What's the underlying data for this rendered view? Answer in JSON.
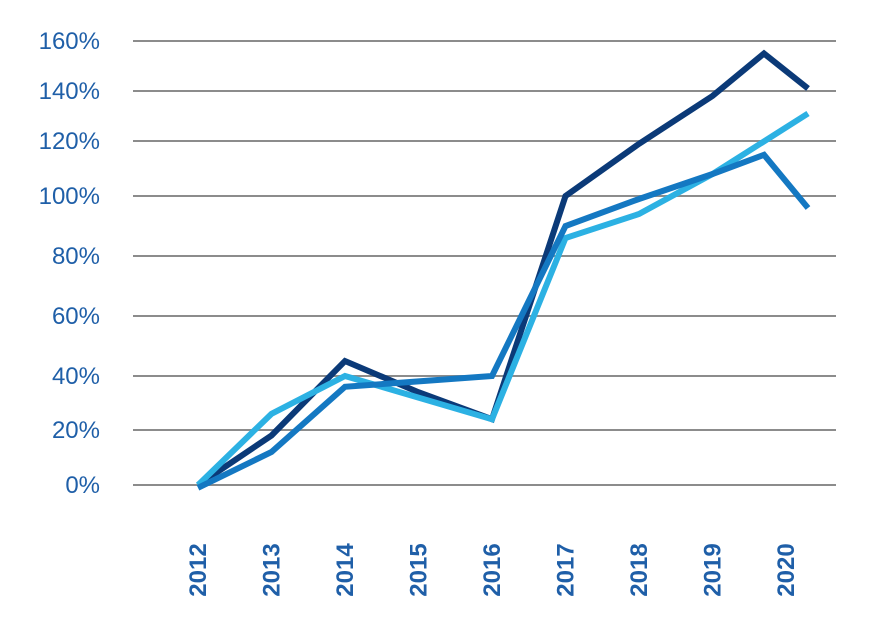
{
  "chart_data": {
    "type": "line",
    "x": [
      "2012",
      "2013",
      "2014",
      "2015",
      "2016",
      "2017",
      "2018",
      "2019",
      "2020"
    ],
    "y_ticks": [
      "0%",
      "20%",
      "40%",
      "60%",
      "80%",
      "100%",
      "120%",
      "140%",
      "160%"
    ],
    "ylim": [
      0,
      160
    ],
    "grid": true,
    "title": "",
    "xlabel": "",
    "ylabel": "",
    "series": [
      {
        "color": "#0b3a78",
        "points": [
          [
            2012,
            0
          ],
          [
            2013,
            18
          ],
          [
            2014,
            45
          ],
          [
            2015,
            34
          ],
          [
            2016,
            24
          ],
          [
            2017,
            100
          ],
          [
            2018,
            119
          ],
          [
            2019,
            138
          ],
          [
            2019.7,
            155
          ],
          [
            2020.3,
            141
          ]
        ]
      },
      {
        "color": "#2cb1e3",
        "points": [
          [
            2012,
            0
          ],
          [
            2013,
            26
          ],
          [
            2014,
            40
          ],
          [
            2015,
            32
          ],
          [
            2016,
            24
          ],
          [
            2017,
            86
          ],
          [
            2018,
            94
          ],
          [
            2019,
            108
          ],
          [
            2020.3,
            131
          ]
        ]
      },
      {
        "color": "#1478c2",
        "points": [
          [
            2012,
            -1
          ],
          [
            2013,
            12
          ],
          [
            2014,
            36
          ],
          [
            2015,
            38
          ],
          [
            2016,
            40
          ],
          [
            2017,
            90
          ],
          [
            2018,
            99
          ],
          [
            2019,
            108
          ],
          [
            2019.7,
            115
          ],
          [
            2020.3,
            96
          ]
        ]
      }
    ]
  }
}
